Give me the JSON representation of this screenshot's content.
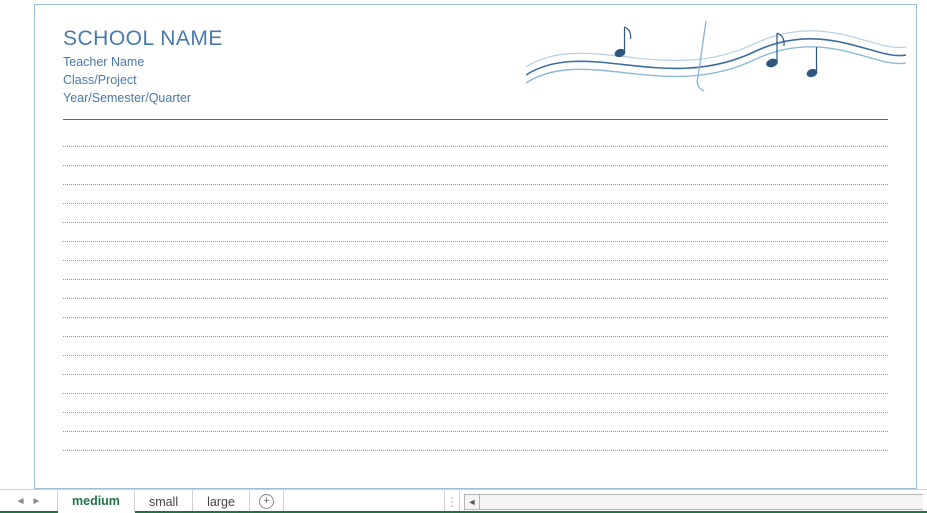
{
  "colors": {
    "accent": "#3b6e9e",
    "accent_dark": "#2f567e",
    "header_text": "#4a79a8",
    "divider": "#3b6e9e",
    "dotted": "#9a9a9a",
    "page_border": "#9bbfd9",
    "tab_active_text": "#217346",
    "tab_text": "#444444",
    "excel_green": "#217346"
  },
  "header": {
    "school_name": "SCHOOL NAME",
    "teacher": "Teacher Name",
    "class_project": "Class/Project",
    "term": "Year/Semester/Quarter"
  },
  "lines": {
    "count": 17,
    "spacing_px": 18
  },
  "tabs": {
    "items": [
      {
        "label": "medium",
        "active": true
      },
      {
        "label": "small",
        "active": false
      },
      {
        "label": "large",
        "active": false
      }
    ]
  }
}
